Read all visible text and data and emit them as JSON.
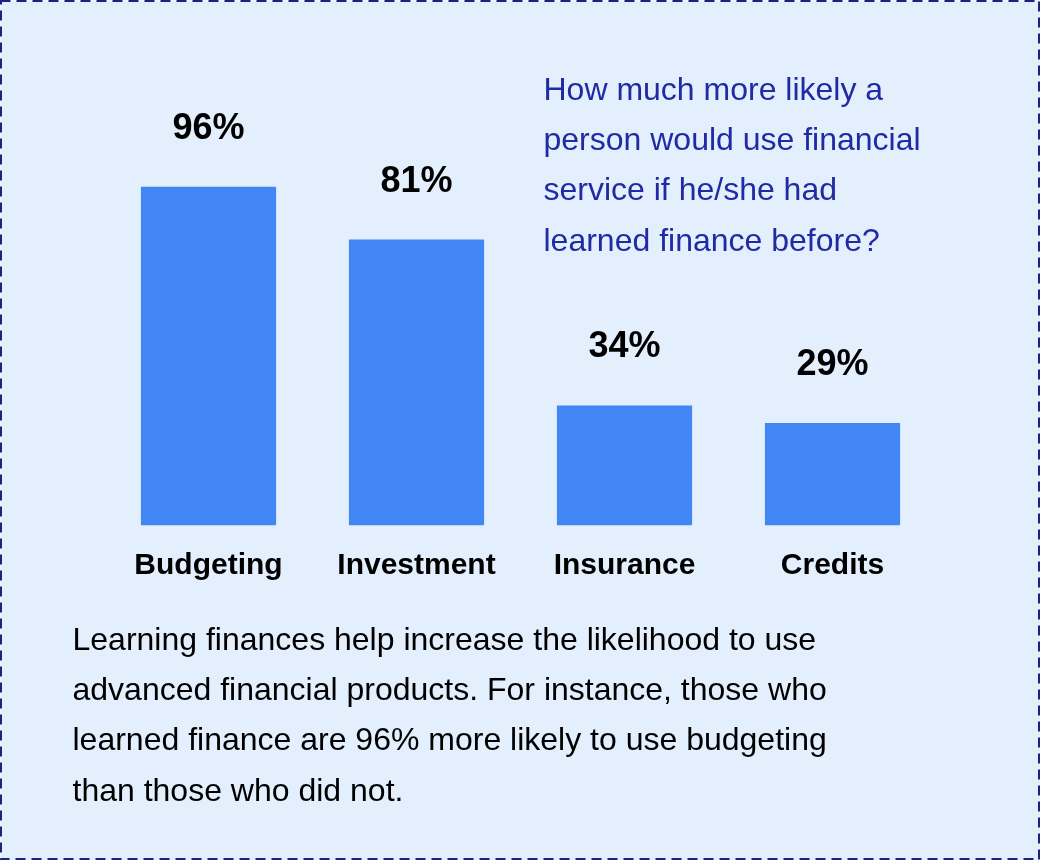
{
  "chart_data": {
    "type": "bar",
    "title": "How much more likely a person would use financial service if he/she had learned finance before?",
    "categories": [
      "Budgeting",
      "Investment",
      "Insurance",
      "Credits"
    ],
    "values": [
      96,
      81,
      34,
      29
    ],
    "color": "#4285f4",
    "value_labels": [
      "96%",
      "81%",
      "34%",
      "29%"
    ],
    "annotations": [
      "Learning finances help increase the likelihood to use advanced financial products.  For instance, those who learned finance are 96% more likely to use budgeting than those who did not."
    ]
  }
}
